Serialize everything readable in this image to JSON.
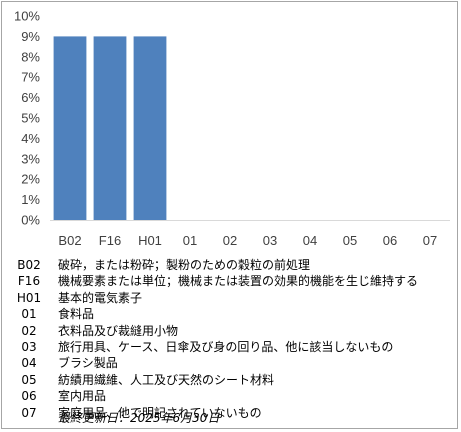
{
  "chart_data": {
    "type": "bar",
    "categories": [
      "B02",
      "F16",
      "H01",
      "01",
      "02",
      "03",
      "04",
      "05",
      "06",
      "07"
    ],
    "values": [
      9,
      9,
      9,
      0,
      0,
      0,
      0,
      0,
      0,
      0
    ],
    "ylim": [
      0,
      10
    ],
    "ytick_step": 1,
    "ytick_suffix": "%",
    "grid": false,
    "bar_color": "#4f81bd",
    "axis_color": "#d9d9d9"
  },
  "legend": [
    {
      "code": "B02",
      "text": "破砕，または粉砕；製粉のための穀粒の前処理"
    },
    {
      "code": "F16",
      "text": "機械要素または単位；機械または装置の効果的機能を生じ維持する"
    },
    {
      "code": "H01",
      "text": "基本的電気素子"
    },
    {
      "code": "01",
      "text": "食料品"
    },
    {
      "code": "02",
      "text": "衣料品及び裁縫用小物"
    },
    {
      "code": "03",
      "text": "旅行用具、ケース、日傘及び身の回り品、他に該当しないもの"
    },
    {
      "code": "04",
      "text": "ブラシ製品"
    },
    {
      "code": "05",
      "text": "紡績用繊維、人工及び天然のシート材料"
    },
    {
      "code": "06",
      "text": "室内用品"
    },
    {
      "code": "07",
      "text": "家庭用品、他で明記されていないもの"
    }
  ],
  "footer": "最終更新日：2025年6月30日"
}
